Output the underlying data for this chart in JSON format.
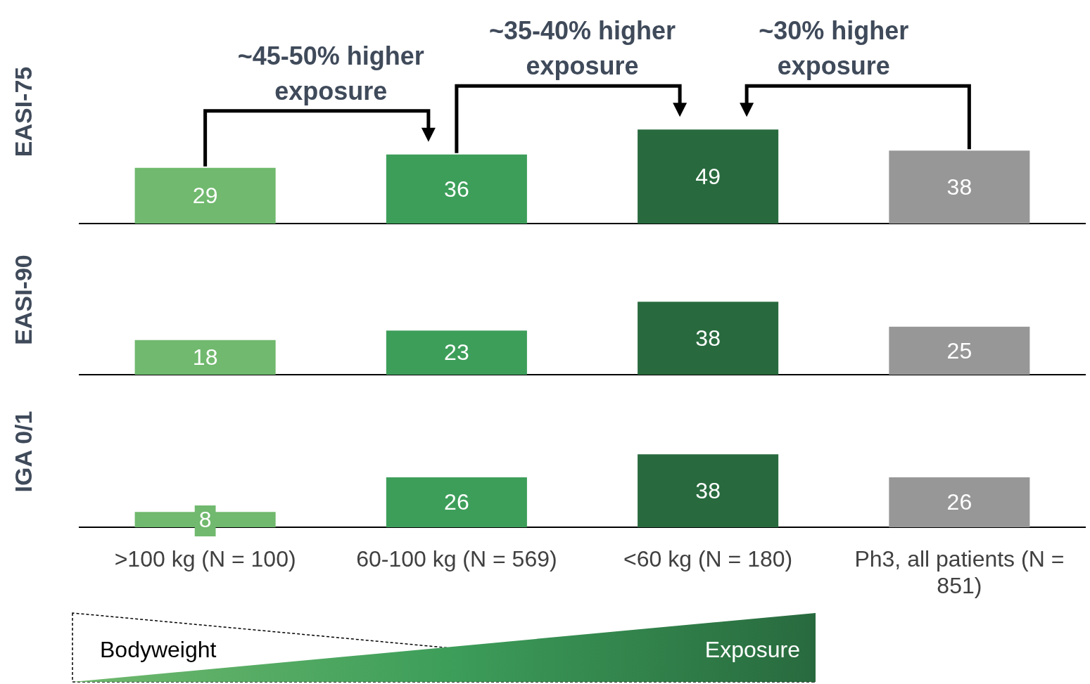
{
  "chart_data": [
    {
      "type": "bar",
      "ylabel": "EASI-75",
      "categories": [
        null,
        null,
        null,
        null
      ],
      "values": [
        29,
        36,
        49,
        38
      ],
      "colors": [
        "#70b96e",
        "#3d9e5a",
        "#286a3e",
        "#979797"
      ],
      "data_labels": true,
      "tick_labels": false,
      "annotations": [
        "~45-50% higher exposure",
        "~35-40% higher exposure",
        "~30% higher exposure"
      ]
    },
    {
      "type": "bar",
      "ylabel": "EASI-90",
      "categories": [
        null,
        null,
        null,
        null
      ],
      "values": [
        18,
        23,
        38,
        25
      ],
      "colors": [
        "#70b96e",
        "#3d9e5a",
        "#286a3e",
        "#979797"
      ],
      "data_labels": true,
      "tick_labels": false
    },
    {
      "type": "bar",
      "ylabel": "IGA 0/1",
      "categories": [
        ">100 kg (N = 100)",
        "60-100 kg (N = 569)",
        "<60 kg (N = 180)",
        "Ph3, all patients (N = 851)"
      ],
      "values": [
        8,
        26,
        38,
        26
      ],
      "colors": [
        "#70b96e",
        "#3d9e5a",
        "#286a3e",
        "#979797"
      ],
      "data_labels": true,
      "tick_labels": "x",
      "annotations": [
        "Bodyweight",
        "Exposure"
      ]
    }
  ]
}
